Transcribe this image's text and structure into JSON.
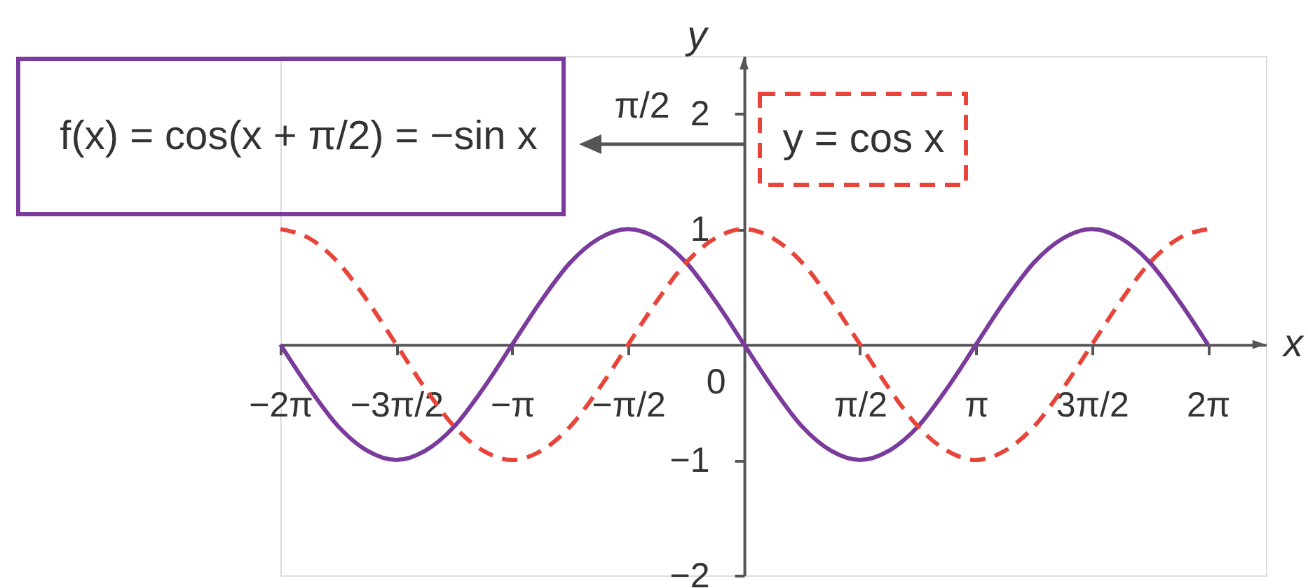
{
  "chart_data": {
    "type": "line",
    "xlabel": "x",
    "ylabel": "y",
    "x": [
      -6.283,
      -5.89,
      -5.498,
      -5.105,
      -4.712,
      -4.32,
      -3.927,
      -3.534,
      -3.142,
      -2.749,
      -2.356,
      -1.963,
      -1.571,
      -1.178,
      -0.785,
      -0.393,
      0,
      0.393,
      0.785,
      1.178,
      1.571,
      1.963,
      2.356,
      2.749,
      3.142,
      3.534,
      3.927,
      4.32,
      4.712,
      5.105,
      5.498,
      5.89,
      6.283
    ],
    "series": [
      {
        "name": "f(x) = cos(x + π/2) = −sin x",
        "color": "#7a3b9c",
        "line_style": "solid",
        "values": [
          0,
          -0.38,
          -0.71,
          -0.92,
          -1,
          -0.92,
          -0.71,
          -0.38,
          0,
          0.38,
          0.71,
          0.92,
          1,
          0.92,
          0.71,
          0.38,
          0,
          -0.38,
          -0.71,
          -0.92,
          -1,
          -0.92,
          -0.71,
          -0.38,
          0,
          0.38,
          0.71,
          0.92,
          1,
          0.92,
          0.71,
          0.38,
          0
        ]
      },
      {
        "name": "y = cos x",
        "color": "#e8443a",
        "line_style": "dashed",
        "values": [
          1,
          0.92,
          0.71,
          0.38,
          0,
          -0.38,
          -0.71,
          -0.92,
          -1,
          -0.92,
          -0.71,
          -0.38,
          0,
          0.38,
          0.71,
          0.92,
          1,
          0.92,
          0.71,
          0.38,
          0,
          -0.38,
          -0.71,
          -0.92,
          -1,
          -0.92,
          -0.71,
          -0.38,
          0,
          0.38,
          0.71,
          0.92,
          1
        ]
      }
    ],
    "xlim": [
      -6.283,
      7.07
    ],
    "ylim": [
      -2,
      2.5
    ],
    "xticks": [
      {
        "value": -6.283,
        "label": "−2π"
      },
      {
        "value": -4.712,
        "label": "−3π/2"
      },
      {
        "value": -3.142,
        "label": "−π"
      },
      {
        "value": -1.571,
        "label": "−π/2"
      },
      {
        "value": 1.571,
        "label": "π/2"
      },
      {
        "value": 3.142,
        "label": "π"
      },
      {
        "value": 4.712,
        "label": "3π/2"
      },
      {
        "value": 6.283,
        "label": "2π"
      }
    ],
    "yticks": [
      {
        "value": -2,
        "label": "−2"
      },
      {
        "value": -1,
        "label": "−1"
      },
      1,
      2
    ],
    "annotations": [
      "π/2",
      {
        "text": "0",
        "x": 0,
        "y": 0
      }
    ]
  }
}
